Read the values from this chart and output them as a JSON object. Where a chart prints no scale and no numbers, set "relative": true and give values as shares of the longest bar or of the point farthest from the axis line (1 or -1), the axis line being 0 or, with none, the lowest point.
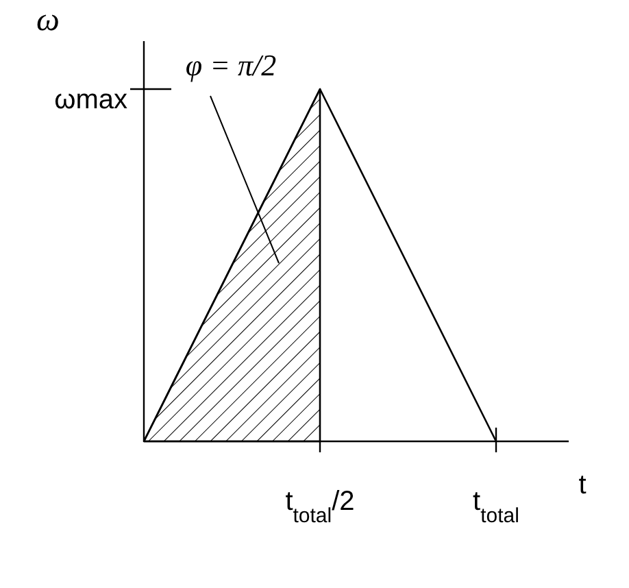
{
  "chart_data": {
    "type": "line",
    "relative": true,
    "xlabel": "t",
    "ylabel": "ω",
    "categories": [
      null,
      "t$_{total}$/2",
      "t$_{total}$"
    ],
    "series": [
      {
        "color": "#000000",
        "values": [
          0,
          1,
          0
        ]
      },
      {
        "type": "area",
        "color": "#000000",
        "values": [
          0,
          1,
          null
        ]
      }
    ],
    "annotations": [
      "φ = π/2",
      "ωmax"
    ]
  }
}
